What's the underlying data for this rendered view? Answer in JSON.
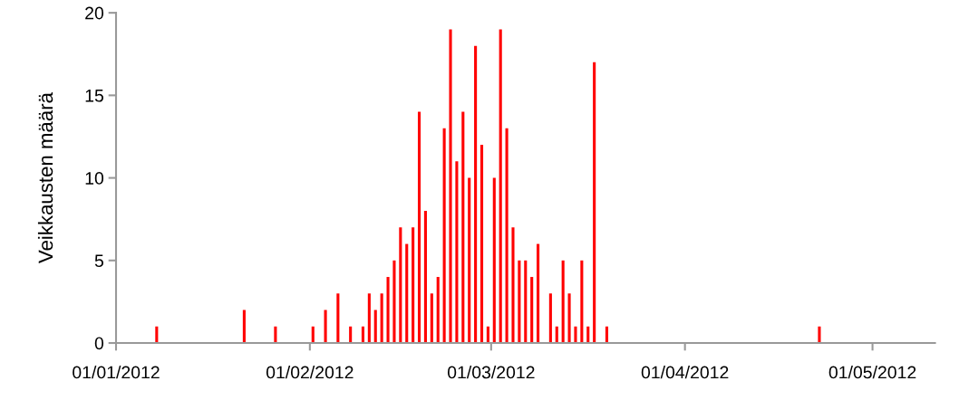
{
  "chart_data": {
    "type": "bar",
    "ylabel": "Veikkausten määrä",
    "x": [
      "2012-01-07",
      "2012-01-21",
      "2012-01-26",
      "2012-02-01",
      "2012-02-03",
      "2012-02-05",
      "2012-02-07",
      "2012-02-09",
      "2012-02-10",
      "2012-02-11",
      "2012-02-12",
      "2012-02-13",
      "2012-02-14",
      "2012-02-15",
      "2012-02-16",
      "2012-02-17",
      "2012-02-18",
      "2012-02-19",
      "2012-02-20",
      "2012-02-21",
      "2012-02-22",
      "2012-02-23",
      "2012-02-24",
      "2012-02-25",
      "2012-02-26",
      "2012-02-27",
      "2012-02-28",
      "2012-02-29",
      "2012-03-01",
      "2012-03-02",
      "2012-03-03",
      "2012-03-04",
      "2012-03-05",
      "2012-03-06",
      "2012-03-07",
      "2012-03-08",
      "2012-03-10",
      "2012-03-11",
      "2012-03-12",
      "2012-03-13",
      "2012-03-14",
      "2012-03-15",
      "2012-03-16",
      "2012-03-17",
      "2012-03-19",
      "2012-04-22"
    ],
    "values": [
      1,
      2,
      1,
      1,
      2,
      3,
      1,
      1,
      3,
      2,
      3,
      4,
      5,
      7,
      6,
      7,
      14,
      8,
      3,
      4,
      13,
      19,
      11,
      14,
      10,
      18,
      12,
      1,
      10,
      19,
      13,
      7,
      5,
      5,
      4,
      6,
      3,
      1,
      5,
      3,
      1,
      5,
      1,
      17,
      1,
      1
    ],
    "color": "#ff0000",
    "xlim": [
      "2012-01-01",
      "2012-05-11"
    ],
    "xticks": [
      {
        "value": "2012-01-01",
        "label": "01/01/2012"
      },
      {
        "value": "2012-02-01",
        "label": "01/02/2012"
      },
      {
        "value": "2012-03-01",
        "label": "01/03/2012"
      },
      {
        "value": "2012-04-01",
        "label": "01/04/2012"
      },
      {
        "value": "2012-05-01",
        "label": "01/05/2012"
      }
    ],
    "ylim": [
      0,
      20
    ],
    "yticks": [
      0,
      5,
      10,
      15,
      20
    ],
    "grid": false
  }
}
